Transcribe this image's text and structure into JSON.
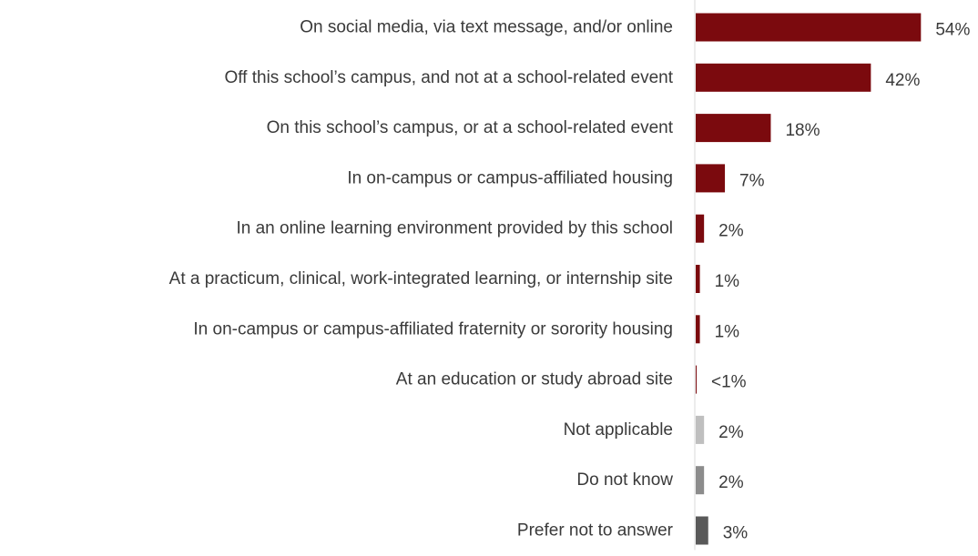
{
  "chart_data": {
    "type": "bar",
    "orientation": "horizontal",
    "title": "",
    "xlabel": "",
    "ylabel": "",
    "xlim": [
      0,
      60
    ],
    "grid": false,
    "legend": "none",
    "categories": [
      "On social media, via text message, and/or online",
      "Off this school’s campus, and not at a school-related event",
      "On this school’s campus, or at a school-related event",
      "In on-campus or campus-affiliated housing",
      "In an online learning environment provided by this school",
      "At a practicum, clinical, work-integrated learning, or internship site",
      "In on-campus or campus-affiliated fraternity or sorority housing",
      "At an education or study abroad site",
      "Not applicable",
      "Do not know",
      "Prefer not to answer"
    ],
    "values": [
      54,
      42,
      18,
      7,
      2,
      1,
      1,
      0.2,
      2,
      2,
      3
    ],
    "value_labels": [
      "54%",
      "42%",
      "18%",
      "7%",
      "2%",
      "1%",
      "1%",
      "<1%",
      "2%",
      "2%",
      "3%"
    ],
    "colors": [
      "#7b0a0e",
      "#7b0a0e",
      "#7b0a0e",
      "#7b0a0e",
      "#7b0a0e",
      "#7b0a0e",
      "#7b0a0e",
      "#7b0a0e",
      "#bfbfbf",
      "#8c8c8c",
      "#595959"
    ]
  }
}
